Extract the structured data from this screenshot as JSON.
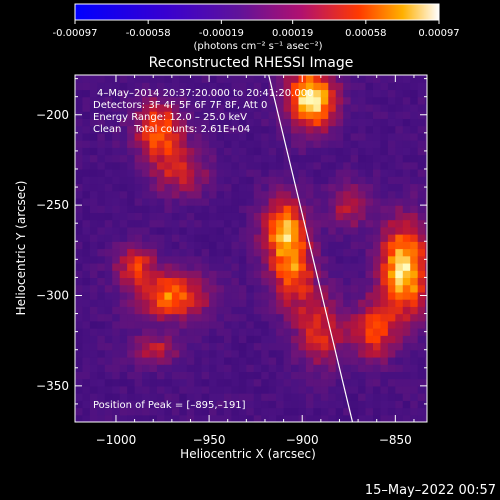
{
  "chart_data": {
    "type": "heatmap",
    "title": "Reconstructed RHESSI Image",
    "xlabel": "Heliocentric X (arcsec)",
    "ylabel": "Heliocentric Y (arcsec)",
    "xlim": [
      -1022,
      -833
    ],
    "ylim": [
      -370,
      -178
    ],
    "x_ticks": [
      -1000,
      -950,
      -900,
      -850
    ],
    "y_ticks": [
      -200,
      -250,
      -300,
      -350
    ],
    "colorbar": {
      "ticks": [
        "-0.00097",
        "-0.00058",
        "-0.00019",
        "0.00019",
        "0.00058",
        "0.00097"
      ],
      "min": -0.00097,
      "max": 0.00097,
      "unit_label": "(photons cm⁻² s⁻¹ asec⁻²)"
    },
    "annotations": {
      "time": "4–May–2014 20:37:20.000 to 20:41:20.000",
      "detectors": "Detectors: 3F 4F 5F 6F 7F 8F, Att 0",
      "energy": "Energy Range: 12.0 – 25.0 keV",
      "clean": "Clean    Total counts: 2.61E+04",
      "peak": "Position of Peak = [–895,–191]"
    },
    "limb_line": [
      [
        -918,
        -178
      ],
      [
        -873,
        -370
      ]
    ],
    "sources": [
      {
        "x": -977,
        "y": -208,
        "amp": 0.00068,
        "sx": 10,
        "sy": 12
      },
      {
        "x": -965,
        "y": -232,
        "amp": 0.00046,
        "sx": 12,
        "sy": 10
      },
      {
        "x": -895,
        "y": -191,
        "amp": 0.00097,
        "sx": 10,
        "sy": 13
      },
      {
        "x": -910,
        "y": -262,
        "amp": 0.00076,
        "sx": 9,
        "sy": 13
      },
      {
        "x": -905,
        "y": -288,
        "amp": 0.00062,
        "sx": 9,
        "sy": 14
      },
      {
        "x": -890,
        "y": -320,
        "amp": 0.00052,
        "sx": 10,
        "sy": 15
      },
      {
        "x": -970,
        "y": -300,
        "amp": 0.00072,
        "sx": 15,
        "sy": 10
      },
      {
        "x": -990,
        "y": -282,
        "amp": 0.00052,
        "sx": 8,
        "sy": 8
      },
      {
        "x": -980,
        "y": -330,
        "amp": 0.00048,
        "sx": 10,
        "sy": 6
      },
      {
        "x": -845,
        "y": -285,
        "amp": 0.00092,
        "sx": 10,
        "sy": 20
      },
      {
        "x": -862,
        "y": -320,
        "amp": 0.00058,
        "sx": 8,
        "sy": 12
      },
      {
        "x": -875,
        "y": -250,
        "amp": 0.00046,
        "sx": 8,
        "sy": 9
      }
    ]
  },
  "footer_timestamp": "15–May–2022 00:57"
}
